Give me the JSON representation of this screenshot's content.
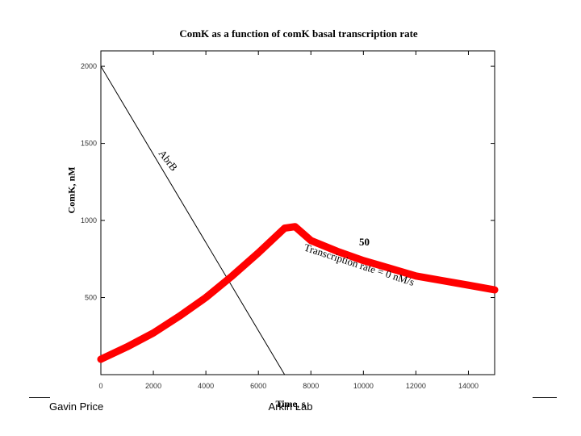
{
  "footer": {
    "left": "Gavin Price",
    "center": "Arkin Lab"
  },
  "chart_data": {
    "type": "line",
    "title": "ComK as a function of comK basal transcription rate",
    "xlabel": "Time, s",
    "ylabel": "ComK, nM",
    "xlim": [
      0,
      15000
    ],
    "ylim": [
      0,
      2100
    ],
    "x_ticks": [
      "0",
      "2000",
      "4000",
      "6000",
      "8000",
      "10000",
      "12000",
      "14000"
    ],
    "y_ticks": [
      "500",
      "1000",
      "1500",
      "2000"
    ],
    "grid": false,
    "series": [
      {
        "name": "AbrB",
        "color": "#000000",
        "x": [
          0,
          7000
        ],
        "y": [
          2000,
          0
        ]
      },
      {
        "name": "ComK",
        "color": "#ff0000",
        "x": [
          0,
          1000,
          2000,
          3000,
          4000,
          5000,
          6000,
          7000,
          7400,
          8000,
          9000,
          10000,
          11000,
          12000,
          13000,
          14000,
          15000
        ],
        "y": [
          100,
          180,
          270,
          380,
          500,
          640,
          790,
          950,
          960,
          870,
          800,
          740,
          690,
          640,
          610,
          580,
          550
        ]
      }
    ],
    "annotations": {
      "abrb_label": "AbrB",
      "rate_top": "50",
      "rate_label": "Transcription rate = 0 nM/s"
    }
  }
}
